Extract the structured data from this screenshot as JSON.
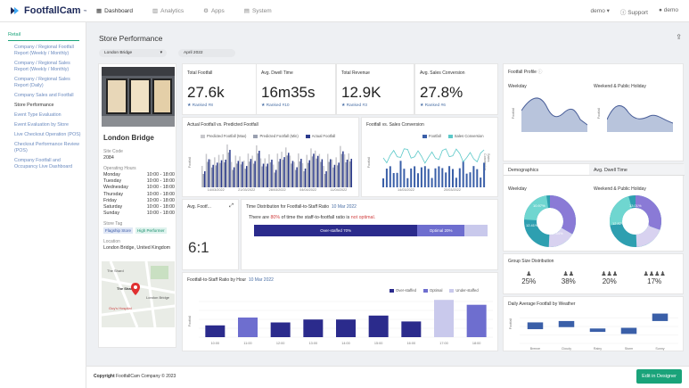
{
  "header": {
    "logo": "FootfallCam",
    "logo_tm": "™",
    "nav": [
      {
        "label": "Dashboard"
      },
      {
        "label": "Analytics"
      },
      {
        "label": "Apps"
      },
      {
        "label": "System"
      }
    ],
    "user_menu": "demo",
    "support": "Support",
    "account": "demo"
  },
  "sidebar": {
    "section": "Retail",
    "items": [
      "Company / Regional Footfall Report (Weekly / Monthly)",
      "Company / Regional Sales Report (Weekly / Monthly)",
      "Company / Regional Sales Report (Daily)",
      "Company Sales and Footfall",
      "Store Performance",
      "Event Type Evaluation",
      "Event Evaluation by Store",
      "Live Checkout Operation (POS)",
      "Checkout Performance Review (POS)",
      "Company Footfall and Occupancy Live Dashboard"
    ]
  },
  "page": {
    "title": "Store Performance",
    "store_select": "London Bridge",
    "period_select": "April 2022"
  },
  "store": {
    "name": "London Bridge",
    "site_code_label": "Site Code",
    "site_code": "2084",
    "hours_label": "Operating Hours",
    "hours": [
      {
        "day": "Monday",
        "time": "10:00 - 18:00"
      },
      {
        "day": "Tuesday",
        "time": "10:00 - 18:00"
      },
      {
        "day": "Wednesday",
        "time": "10:00 - 18:00"
      },
      {
        "day": "Thursday",
        "time": "10:00 - 18:00"
      },
      {
        "day": "Friday",
        "time": "10:00 - 18:00"
      },
      {
        "day": "Saturday",
        "time": "10:00 - 18:00"
      },
      {
        "day": "Sunday",
        "time": "10:00 - 18:00"
      }
    ],
    "tag_label": "Store Tag",
    "tags": [
      "Flagship Store",
      "High Performer"
    ],
    "location_label": "Location",
    "location": "London Bridge, United Kingdom",
    "map_labels": [
      "The Shard",
      "London Bridge",
      "Guy's Hospital",
      "The Shard"
    ]
  },
  "kpis": [
    {
      "label": "Total Footfall",
      "value": "27.6k",
      "rank": "Ranked #8"
    },
    {
      "label": "Avg. Dwell Time",
      "value": "16m35s",
      "rank": "Ranked #10"
    },
    {
      "label": "Total Revenue",
      "value": "12.9K",
      "rank": "Ranked #3"
    },
    {
      "label": "Avg. Sales Conversion",
      "value": "27.8%",
      "rank": "Ranked #6"
    }
  ],
  "actual_vs_predicted": {
    "title": "Actual Footfall vs. Predicted Footfall",
    "legend": [
      "Predicted Footfall (Max)",
      "Predicted Footfall (Min)",
      "Actual Footfall"
    ],
    "ylabel": "Footfall",
    "dates": [
      "14/03/2022",
      "21/03/2022",
      "28/03/2022",
      "04/04/2022",
      "11/04/2022"
    ],
    "colors": {
      "max": "#c8c8cc",
      "min": "#9aa0b0",
      "actual": "#2b3a8c"
    }
  },
  "footfall_vs_conv": {
    "title": "Footfall vs. Sales Conversion",
    "legend": [
      "Footfall",
      "Sales Conversion"
    ],
    "ylabel": "Footfall",
    "y2label": "Sales Conversion",
    "dates": [
      "14/03/2022",
      "20/03/2022"
    ]
  },
  "ratio": {
    "label": "Avg. Footf...",
    "value": "6:1",
    "dist_title": "Time Distribution for Footfall-to-Staff Ratio",
    "dist_date": "10 Mar 2022",
    "desc_pre": "There are ",
    "desc_pct": "80%",
    "desc_mid": " of time the staff-to-footfall ratio is ",
    "desc_status": "not optimal.",
    "segments": [
      {
        "label": "Over-staffed",
        "pct": "70%",
        "frac": 0.7,
        "color": "#2b2b8c"
      },
      {
        "label": "Optimal",
        "pct": "20%",
        "frac": 0.2,
        "color": "#6e6ecf"
      },
      {
        "label": "Under-staffed",
        "pct": "",
        "frac": 0.1,
        "color": "#c9c9ec"
      }
    ]
  },
  "hourly": {
    "title": "Footfall-to-Staff Ratio by Hour",
    "date": "10 Mar 2022",
    "legend": [
      "Over-staffed",
      "Optimal",
      "Under-staffed"
    ],
    "colors": [
      "#2b2b8c",
      "#6e6ecf",
      "#c9c9ec"
    ],
    "ylabel": "Footfall",
    "hours": [
      "10:00",
      "11:00",
      "12:00",
      "13:00",
      "14:00",
      "15:00",
      "16:00",
      "17:00",
      "18:00"
    ],
    "values": [
      12,
      20,
      15,
      18,
      18,
      22,
      16,
      38,
      33
    ],
    "status": [
      0,
      1,
      0,
      0,
      0,
      0,
      0,
      2,
      1
    ]
  },
  "profile": {
    "title": "Footfall Profile",
    "weekday": "Weekday",
    "weekend": "Weekend & Public Holiday",
    "ylabel": "Footfall"
  },
  "demographics": {
    "tab1": "Demographics",
    "tab2": "Avg. Dwell Time",
    "weekday": "Weekday",
    "weekend": "Weekend & Public Holiday",
    "weekday_labels": [
      "10.97%",
      "10.83%",
      "12.41%",
      "12.44%"
    ],
    "weekend_labels": [
      "13.01%",
      "12.01%",
      "12.82%",
      "12.75%"
    ]
  },
  "group_size": {
    "title": "Group Size Distribution",
    "values": [
      "25%",
      "38%",
      "20%",
      "17%"
    ],
    "icons": [
      "single-person-icon",
      "two-people-icon",
      "three-people-icon",
      "four-people-icon"
    ]
  },
  "weather": {
    "title": "Daily Average Footfall by Weather",
    "ylabel": "Footfall",
    "categories": [
      "Breeze",
      "Cloudy",
      "Rainy",
      "Storm",
      "Sunny"
    ],
    "ranges": [
      [
        210,
        310
      ],
      [
        240,
        330
      ],
      [
        170,
        220
      ],
      [
        140,
        230
      ],
      [
        330,
        440
      ]
    ],
    "ylim": [
      0,
      500
    ]
  },
  "footer": {
    "copyright_bold": "Copyright",
    "copyright": " FootfallCam Company © 2023",
    "edit": "Edit in Designer"
  },
  "theme": {
    "accent": "#1aa37a",
    "navy": "#2b2b8c",
    "chart_blue": "#3a5fa8"
  }
}
